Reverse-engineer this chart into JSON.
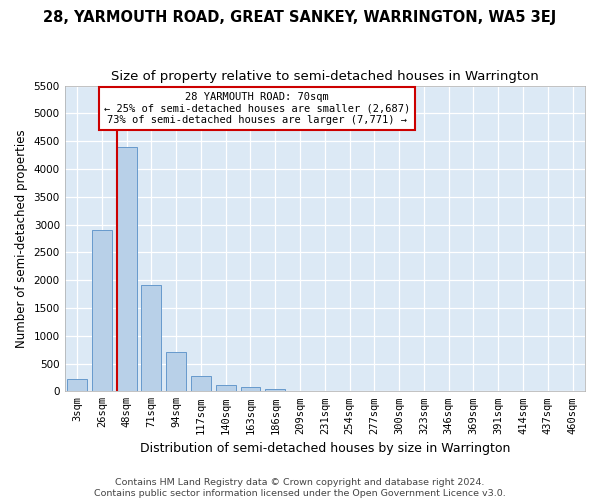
{
  "title": "28, YARMOUTH ROAD, GREAT SANKEY, WARRINGTON, WA5 3EJ",
  "subtitle": "Size of property relative to semi-detached houses in Warrington",
  "xlabel": "Distribution of semi-detached houses by size in Warrington",
  "ylabel": "Number of semi-detached properties",
  "categories": [
    "3sqm",
    "26sqm",
    "48sqm",
    "71sqm",
    "94sqm",
    "117sqm",
    "140sqm",
    "163sqm",
    "186sqm",
    "209sqm",
    "231sqm",
    "254sqm",
    "277sqm",
    "300sqm",
    "323sqm",
    "346sqm",
    "369sqm",
    "391sqm",
    "414sqm",
    "437sqm",
    "460sqm"
  ],
  "values": [
    220,
    2900,
    4400,
    1920,
    710,
    280,
    120,
    80,
    50,
    0,
    0,
    0,
    0,
    0,
    0,
    0,
    0,
    0,
    0,
    0,
    0
  ],
  "bar_color": "#b8d0e8",
  "bar_edge_color": "#6699cc",
  "vline_color": "#cc0000",
  "ylim_max": 5500,
  "yticks": [
    0,
    500,
    1000,
    1500,
    2000,
    2500,
    3000,
    3500,
    4000,
    4500,
    5000,
    5500
  ],
  "annotation_line1": "28 YARMOUTH ROAD: 70sqm",
  "annotation_line2": "← 25% of semi-detached houses are smaller (2,687)",
  "annotation_line3": "73% of semi-detached houses are larger (7,771) →",
  "plot_bg_color": "#dce9f5",
  "grid_color": "#ffffff",
  "footer_line1": "Contains HM Land Registry data © Crown copyright and database right 2024.",
  "footer_line2": "Contains public sector information licensed under the Open Government Licence v3.0.",
  "title_fontsize": 10.5,
  "subtitle_fontsize": 9.5,
  "ylabel_fontsize": 8.5,
  "xlabel_fontsize": 9,
  "tick_fontsize": 7.5,
  "annot_fontsize": 7.5,
  "footer_fontsize": 6.8,
  "vline_bin_index": 2
}
